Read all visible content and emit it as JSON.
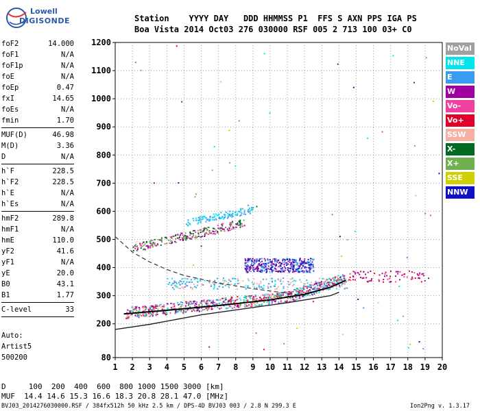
{
  "logo": {
    "line1": "Lowell",
    "line2": "DIGISONDE"
  },
  "header": {
    "row1": "Station    YYYY DAY   DDD HHMMSS P1  FFS S AXN PPS IGA PS",
    "row2": "Boa Vista 2014 Oct03 276 030000 RSF 005 2 713 100 03+ C0"
  },
  "params": [
    {
      "label": "foF2",
      "value": "14.000"
    },
    {
      "label": "foF1",
      "value": "N/A"
    },
    {
      "label": "foF1p",
      "value": "N/A"
    },
    {
      "label": "foE",
      "value": "N/A"
    },
    {
      "label": "foEp",
      "value": "0.47"
    },
    {
      "label": "fxI",
      "value": "14.65"
    },
    {
      "label": "foEs",
      "value": "N/A"
    },
    {
      "label": "fmin",
      "value": "1.70"
    },
    {
      "sep": true
    },
    {
      "label": "MUF(D)",
      "value": "46.98"
    },
    {
      "label": "M(D)",
      "value": "3.36"
    },
    {
      "label": "D",
      "value": "N/A"
    },
    {
      "sep": true
    },
    {
      "label": "h`F",
      "value": "228.5"
    },
    {
      "label": "h`F2",
      "value": "228.5"
    },
    {
      "label": "h`E",
      "value": "N/A"
    },
    {
      "label": "h`Es",
      "value": "N/A"
    },
    {
      "sep": true
    },
    {
      "label": "hmF2",
      "value": "289.8"
    },
    {
      "label": "hmF1",
      "value": "N/A"
    },
    {
      "label": "hmE",
      "value": "110.0"
    },
    {
      "label": "yF2",
      "value": "41.6"
    },
    {
      "label": "yF1",
      "value": "N/A"
    },
    {
      "label": "yE",
      "value": "20.0"
    },
    {
      "label": "B0",
      "value": "43.1"
    },
    {
      "label": "B1",
      "value": "1.77"
    },
    {
      "sep": true
    },
    {
      "label": "C-level",
      "value": "33"
    },
    {
      "sep": true
    }
  ],
  "auto": {
    "line1": "Auto:",
    "line2": "Artist5",
    "line3": "500200"
  },
  "legend": [
    {
      "label": "NoVal",
      "color": "#a0a0a0"
    },
    {
      "label": "NNE",
      "color": "#00e5ee"
    },
    {
      "label": "E",
      "color": "#3a9cf0"
    },
    {
      "label": "W",
      "color": "#a000a0"
    },
    {
      "label": "Vo-",
      "color": "#f040a0"
    },
    {
      "label": "Vo+",
      "color": "#e0002a"
    },
    {
      "label": "SSW",
      "color": "#f4b0a0"
    },
    {
      "label": "X-",
      "color": "#006a20"
    },
    {
      "label": "X+",
      "color": "#70b050"
    },
    {
      "label": "SSE",
      "color": "#d0d000"
    },
    {
      "label": "NNW",
      "color": "#1010c0"
    }
  ],
  "muf_table": {
    "d_row": "D     100  200  400  600  800 1000 1500 3000 [km]",
    "muf_row": "MUF  14.4 14.6 15.3 16.6 18.3 20.8 28.1 47.0 [MHz]"
  },
  "footer": {
    "left": "BVJ03_2014276030000.RSF / 384fx512h 50 kHz 2.5 km / DPS-4D BVJ03 003 / 2.8 N 299.3 E",
    "right": "Ion2Png v. 1.3.17"
  },
  "chart_data": {
    "type": "scatter",
    "x_ticks": [
      "1",
      "2",
      "3",
      "4",
      "5",
      "6",
      "7",
      "8",
      "9",
      "10",
      "11",
      "12",
      "13",
      "14",
      "15",
      "16",
      "17",
      "18",
      "19",
      "20"
    ],
    "y_ticks": [
      "80",
      "200",
      "300",
      "400",
      "500",
      "600",
      "700",
      "800",
      "900",
      "1000",
      "1100",
      "1200"
    ],
    "xlim": [
      1,
      20
    ],
    "ylim": [
      80,
      1200
    ],
    "grid": "dotted",
    "traces": [
      {
        "name": "profile",
        "points": [
          [
            1,
            180
          ],
          [
            3,
            198
          ],
          [
            6,
            232
          ],
          [
            9,
            258
          ],
          [
            11,
            275
          ],
          [
            12.5,
            290
          ],
          [
            13.5,
            300
          ],
          [
            14,
            312
          ]
        ]
      },
      {
        "name": "ordinary",
        "points": [
          [
            1.5,
            235
          ],
          [
            4,
            248
          ],
          [
            7,
            265
          ],
          [
            10,
            285
          ],
          [
            12,
            305
          ],
          [
            13.5,
            330
          ],
          [
            14.4,
            355
          ]
        ]
      },
      {
        "name": "dashed",
        "points": [
          [
            1,
            510
          ],
          [
            2,
            455
          ],
          [
            3,
            420
          ],
          [
            4,
            393
          ],
          [
            5,
            372
          ],
          [
            7,
            345
          ],
          [
            9,
            325
          ],
          [
            12,
            300
          ]
        ]
      }
    ]
  }
}
